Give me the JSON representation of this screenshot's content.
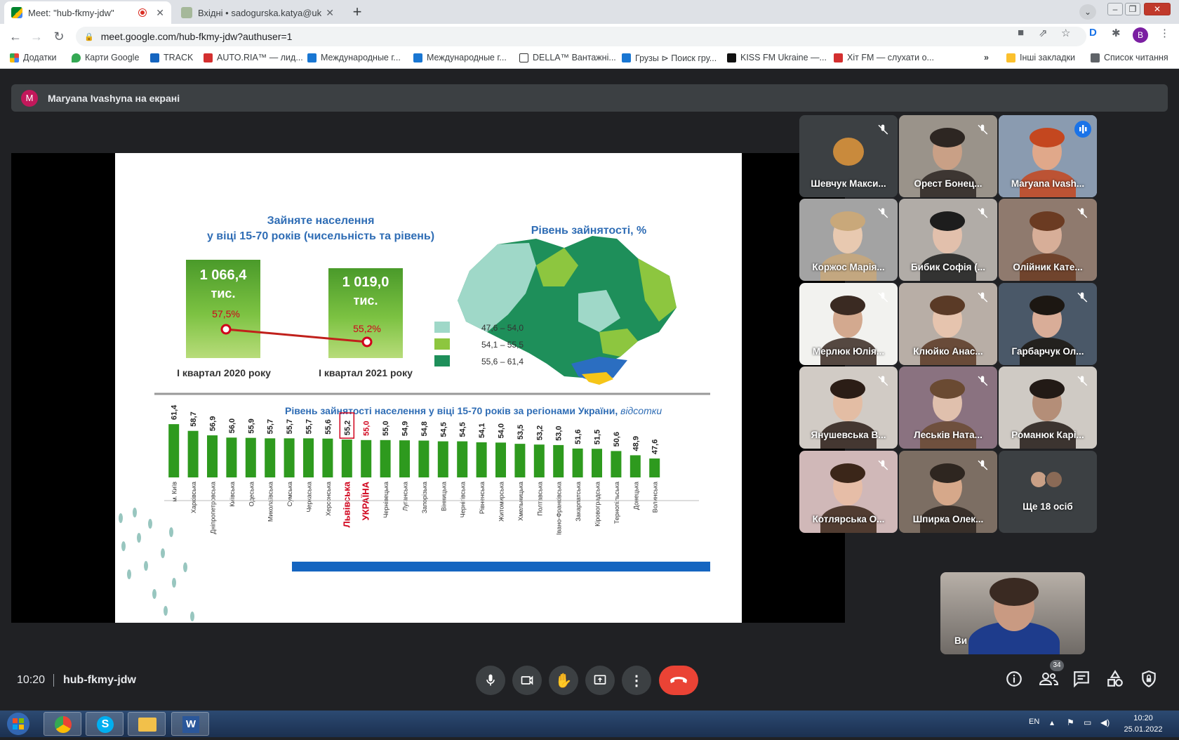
{
  "browser": {
    "tabs": [
      {
        "title": "Meet: \"hub-fkmy-jdw\"",
        "active": true,
        "recording": true
      },
      {
        "title": "Вхідні • sadogurska.katya@ukr.n",
        "active": false
      }
    ],
    "url": "meet.google.com/hub-fkmy-jdw?authuser=1",
    "profile_initial": "B",
    "bookmarks": [
      "Додатки",
      "Карти Google",
      "TRACK",
      "AUTO.RIA™ — лид...",
      "Международные г...",
      "Международные г...",
      "DELLA™ Вантажні...",
      "Грузы ⊳ Поиск гру...",
      "KISS FM Ukraine —...",
      "Хіт FM — слухати о..."
    ],
    "bookmarks_overflow": "»",
    "other_bookmarks": "Інші закладки",
    "reading_list": "Список читання"
  },
  "meet": {
    "presenter_initial": "M",
    "presenter_text": "Maryana Ivashyna на екрані",
    "participants": [
      {
        "name": "Шевчук Макси...",
        "muted": true,
        "avatar": "cat"
      },
      {
        "name": "Орест Бонец...",
        "muted": true
      },
      {
        "name": "Maryana Ivash...",
        "muted": false,
        "speaking": true
      },
      {
        "name": "Коржос Марія...",
        "muted": true
      },
      {
        "name": "Бибик Софія (...",
        "muted": true
      },
      {
        "name": "Олійник Кате...",
        "muted": true
      },
      {
        "name": "Мерлюк Юлія...",
        "muted": true
      },
      {
        "name": "Клюйко Анас...",
        "muted": true
      },
      {
        "name": "Гарбарчук Ол...",
        "muted": true
      },
      {
        "name": "Янушевська В...",
        "muted": true
      },
      {
        "name": "Леськів Ната...",
        "muted": true
      },
      {
        "name": "Романюк Карі...",
        "muted": true
      },
      {
        "name": "Котлярська О...",
        "muted": true
      },
      {
        "name": "Шпирка Олек...",
        "muted": true
      }
    ],
    "more_label": "Ще 18 осіб",
    "self_label": "Ви",
    "time": "10:20",
    "meeting_code": "hub-fkmy-jdw",
    "participant_count": "34"
  },
  "slide": {
    "title_line1": "Зайняте населення",
    "title_line2": "у віці 15-70 років (чисельність та рівень)",
    "box1_value": "1 066,4",
    "box1_unit": "тис.",
    "box1_rate": "57,5%",
    "box1_label": "I квартал 2020 року",
    "box2_value": "1 019,0",
    "box2_unit": "тис.",
    "box2_rate": "55,2%",
    "box2_label": "I квартал 2021 року",
    "map_title": "Рівень зайнятості, %",
    "legend": [
      {
        "label": "47,6 – 54,0",
        "color": "#9fd8c8"
      },
      {
        "label": "54,1 – 55,5",
        "color": "#8dc63f"
      },
      {
        "label": "55,6 – 61,4",
        "color": "#1e8f5a"
      }
    ],
    "bar_title": "Рівень зайнятості населення у віці 15-70 років за регіонами України,",
    "bar_title_unit": "відсотки"
  },
  "chart_data": {
    "type": "bar",
    "title": "Рівень зайнятості населення у віці 15-70 років за регіонами України, відсотки",
    "categories": [
      "м. Київ",
      "Харківська",
      "Дніпропетровська",
      "Київська",
      "Одеська",
      "Миколаївська",
      "Сумська",
      "Черкаська",
      "Херсонська",
      "Львівська",
      "УКРАЇНА",
      "Чернівецька",
      "Луганська",
      "Запорізька",
      "Вінницька",
      "Чернігівська",
      "Рівненська",
      "Житомирська",
      "Хмельницька",
      "Полтавська",
      "Івано-Франківська",
      "Закарпатська",
      "Кіровоградська",
      "Тернопільська",
      "Донецька",
      "Волинська"
    ],
    "value_labels": [
      "61,4",
      "58,7",
      "56,9",
      "56,0",
      "55,9",
      "55,7",
      "55,7",
      "55,7",
      "55,6",
      "55,2",
      "55,0",
      "55,0",
      "54,9",
      "54,8",
      "54,5",
      "54,5",
      "54,1",
      "54,0",
      "53,5",
      "53,2",
      "53,0",
      "51,6",
      "51,5",
      "50,6",
      "48,9",
      "47,6"
    ],
    "values": [
      61.4,
      58.7,
      56.9,
      56.0,
      55.9,
      55.7,
      55.7,
      55.7,
      55.6,
      55.2,
      55.0,
      55.0,
      54.9,
      54.8,
      54.5,
      54.5,
      54.1,
      54.0,
      53.5,
      53.2,
      53.0,
      51.6,
      51.5,
      50.6,
      48.9,
      47.6
    ],
    "highlight": [
      "Львівська",
      "УКРАЇНА"
    ],
    "bar_color": "#2e9a1e",
    "highlight_color": "#d0021b"
  },
  "taskbar": {
    "lang": "EN",
    "clock_time": "10:20",
    "clock_date": "25.01.2022"
  }
}
